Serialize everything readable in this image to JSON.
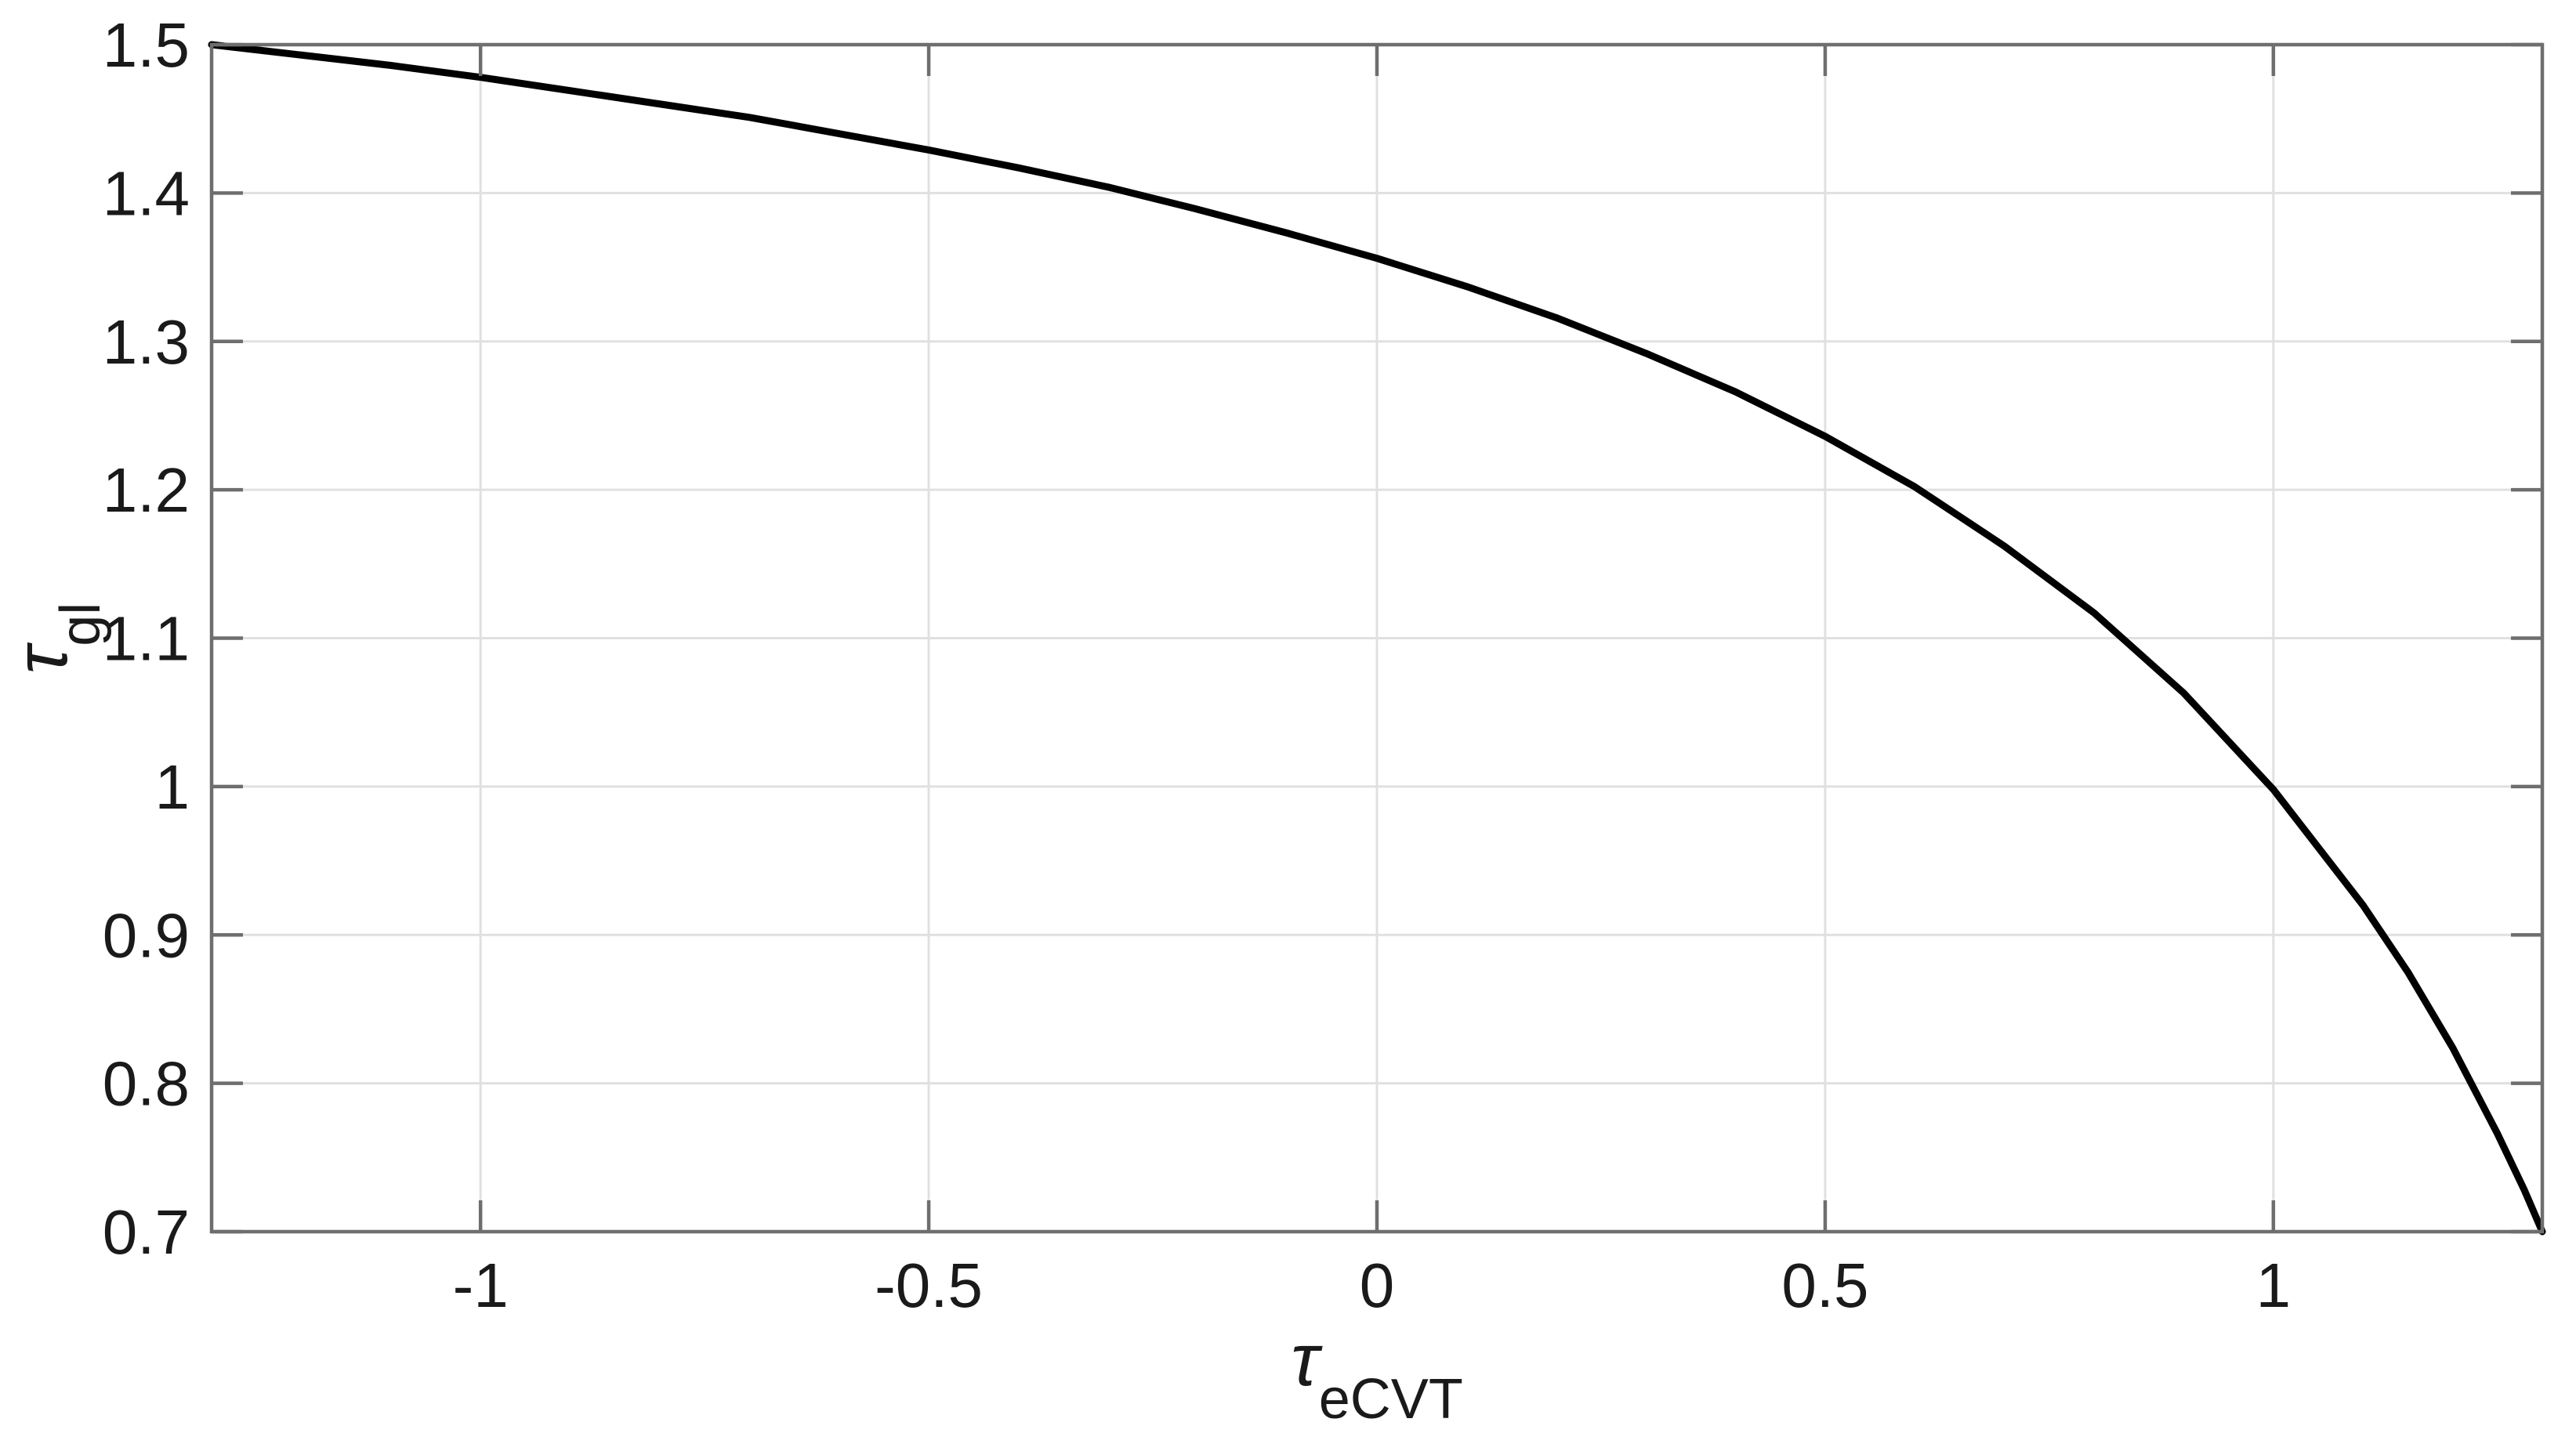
{
  "chart_data": {
    "type": "line",
    "title": "",
    "xlabel": {
      "main": "τ",
      "sub": "eCVT"
    },
    "ylabel": {
      "main": "τ",
      "sub": "gl"
    },
    "xlim": [
      -1.3,
      1.3
    ],
    "ylim": [
      0.7,
      1.5
    ],
    "grid": true,
    "legend": "none",
    "x_ticks": [
      {
        "value": -1,
        "label": "-1"
      },
      {
        "value": -0.5,
        "label": "-0.5"
      },
      {
        "value": 0,
        "label": "0"
      },
      {
        "value": 0.5,
        "label": "0.5"
      },
      {
        "value": 1,
        "label": "1"
      }
    ],
    "y_ticks": [
      {
        "value": 0.7,
        "label": "0.7"
      },
      {
        "value": 0.8,
        "label": "0.8"
      },
      {
        "value": 0.9,
        "label": "0.9"
      },
      {
        "value": 1.0,
        "label": "1"
      },
      {
        "value": 1.1,
        "label": "1.1"
      },
      {
        "value": 1.2,
        "label": "1.2"
      },
      {
        "value": 1.3,
        "label": "1.3"
      },
      {
        "value": 1.4,
        "label": "1.4"
      },
      {
        "value": 1.5,
        "label": "1.5"
      }
    ],
    "series": [
      {
        "line_color": "#000000",
        "points": [
          [
            -1.3,
            1.5
          ],
          [
            -1.2,
            1.493
          ],
          [
            -1.1,
            1.486
          ],
          [
            -1.0,
            1.478
          ],
          [
            -0.9,
            1.469
          ],
          [
            -0.8,
            1.46
          ],
          [
            -0.7,
            1.451
          ],
          [
            -0.6,
            1.44
          ],
          [
            -0.5,
            1.429
          ],
          [
            -0.4,
            1.417
          ],
          [
            -0.3,
            1.404
          ],
          [
            -0.2,
            1.389
          ],
          [
            -0.1,
            1.373
          ],
          [
            0.0,
            1.356
          ],
          [
            0.1,
            1.337
          ],
          [
            0.2,
            1.316
          ],
          [
            0.3,
            1.292
          ],
          [
            0.4,
            1.266
          ],
          [
            0.5,
            1.236
          ],
          [
            0.6,
            1.202
          ],
          [
            0.7,
            1.162
          ],
          [
            0.8,
            1.117
          ],
          [
            0.9,
            1.063
          ],
          [
            1.0,
            0.998
          ],
          [
            1.1,
            0.92
          ],
          [
            1.15,
            0.875
          ],
          [
            1.2,
            0.824
          ],
          [
            1.25,
            0.766
          ],
          [
            1.28,
            0.728
          ],
          [
            1.3,
            0.7
          ]
        ]
      }
    ],
    "style": {
      "curve_color": "#000000",
      "grid_color": "#e0e0e0",
      "axis_color": "#6e6e6e",
      "text_color": "#1a1a1a",
      "background_color": "#ffffff"
    }
  }
}
